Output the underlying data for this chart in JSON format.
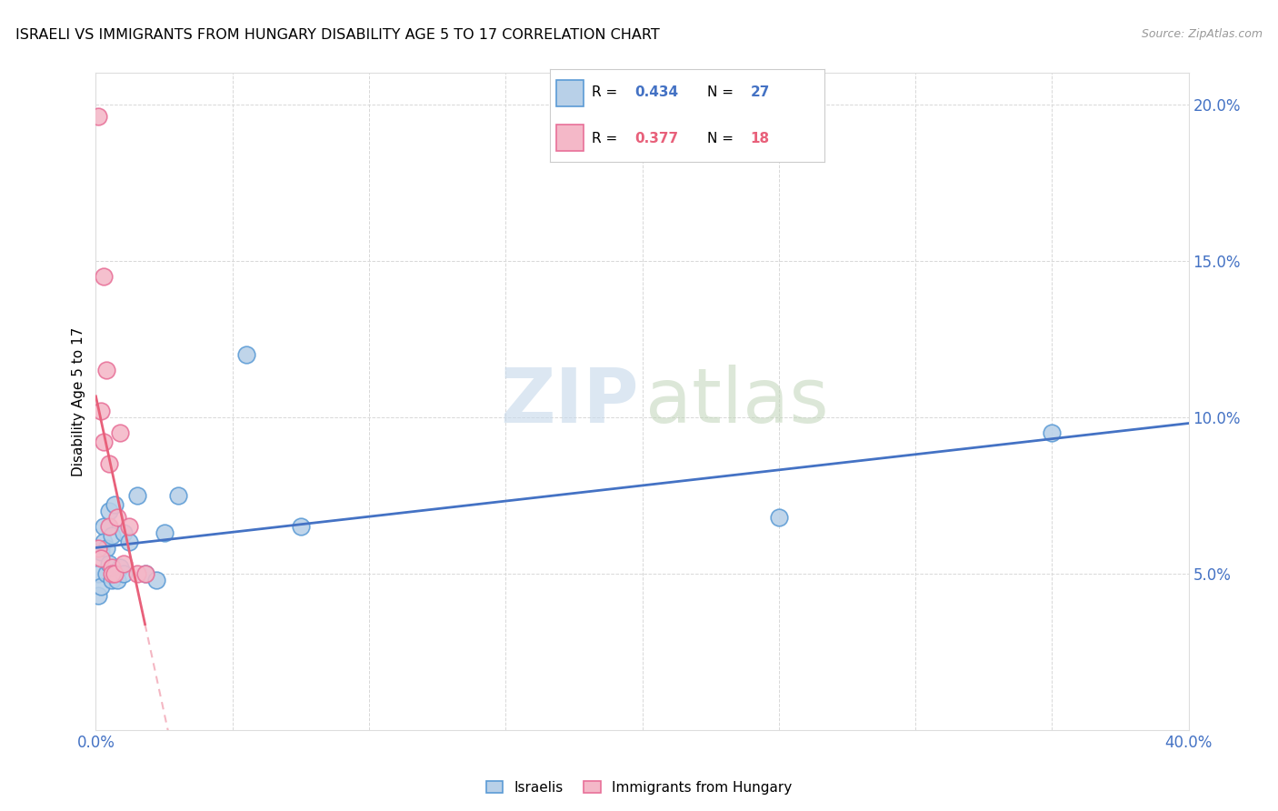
{
  "title": "ISRAELI VS IMMIGRANTS FROM HUNGARY DISABILITY AGE 5 TO 17 CORRELATION CHART",
  "source": "Source: ZipAtlas.com",
  "ylabel": "Disability Age 5 to 17",
  "xlim": [
    0.0,
    0.4
  ],
  "ylim": [
    0.0,
    0.21
  ],
  "legend_blue_R": "0.434",
  "legend_blue_N": "27",
  "legend_pink_R": "0.377",
  "legend_pink_N": "18",
  "blue_fill": "#b8d0e8",
  "pink_fill": "#f4b8c8",
  "blue_edge": "#5b9bd5",
  "pink_edge": "#e87098",
  "blue_line": "#4472c4",
  "pink_line": "#e8607a",
  "israelis_x": [
    0.001,
    0.001,
    0.002,
    0.002,
    0.003,
    0.003,
    0.004,
    0.004,
    0.005,
    0.005,
    0.006,
    0.006,
    0.007,
    0.008,
    0.009,
    0.01,
    0.01,
    0.012,
    0.015,
    0.018,
    0.022,
    0.025,
    0.03,
    0.055,
    0.075,
    0.25,
    0.35
  ],
  "israelis_y": [
    0.05,
    0.043,
    0.057,
    0.046,
    0.065,
    0.06,
    0.05,
    0.058,
    0.07,
    0.053,
    0.048,
    0.062,
    0.072,
    0.048,
    0.052,
    0.063,
    0.05,
    0.06,
    0.075,
    0.05,
    0.048,
    0.063,
    0.075,
    0.12,
    0.065,
    0.068,
    0.095
  ],
  "hungary_x": [
    0.001,
    0.001,
    0.002,
    0.002,
    0.003,
    0.003,
    0.004,
    0.005,
    0.005,
    0.006,
    0.006,
    0.007,
    0.008,
    0.009,
    0.01,
    0.012,
    0.015,
    0.018
  ],
  "hungary_y": [
    0.196,
    0.058,
    0.055,
    0.102,
    0.092,
    0.145,
    0.115,
    0.085,
    0.065,
    0.052,
    0.05,
    0.05,
    0.068,
    0.095,
    0.053,
    0.065,
    0.05,
    0.05
  ]
}
